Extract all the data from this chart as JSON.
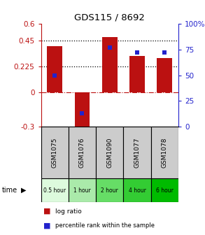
{
  "title": "GDS115 / 8692",
  "samples": [
    "GSM1075",
    "GSM1076",
    "GSM1090",
    "GSM1077",
    "GSM1078"
  ],
  "log_ratio": [
    0.4,
    -0.34,
    0.48,
    0.32,
    0.3
  ],
  "percentile": [
    50,
    13,
    77,
    72,
    72
  ],
  "time_labels": [
    "0.5 hour",
    "1 hour",
    "2 hour",
    "4 hour",
    "6 hour"
  ],
  "time_colors": [
    "#ddfadd",
    "#aaeaaa",
    "#66dd66",
    "#33cc33",
    "#00bb00"
  ],
  "bar_color": "#bb1111",
  "dot_color": "#2222cc",
  "ylim_left": [
    -0.3,
    0.6
  ],
  "ylim_right": [
    0,
    100
  ],
  "yticks_left": [
    -0.3,
    0,
    0.225,
    0.45,
    0.6
  ],
  "ytick_labels_left": [
    "-0.3",
    "0",
    "0.225",
    "0.45",
    "0.6"
  ],
  "yticks_right": [
    0,
    25,
    50,
    75,
    100
  ],
  "ytick_labels_right": [
    "0",
    "25",
    "50",
    "75",
    "100%"
  ],
  "hlines": [
    0.225,
    0.45
  ],
  "zero_line": 0,
  "bar_width": 0.55,
  "cell_bg": "#cccccc",
  "legend_items": [
    {
      "color": "#bb1111",
      "label": "log ratio"
    },
    {
      "color": "#2222cc",
      "label": "percentile rank within the sample"
    }
  ]
}
